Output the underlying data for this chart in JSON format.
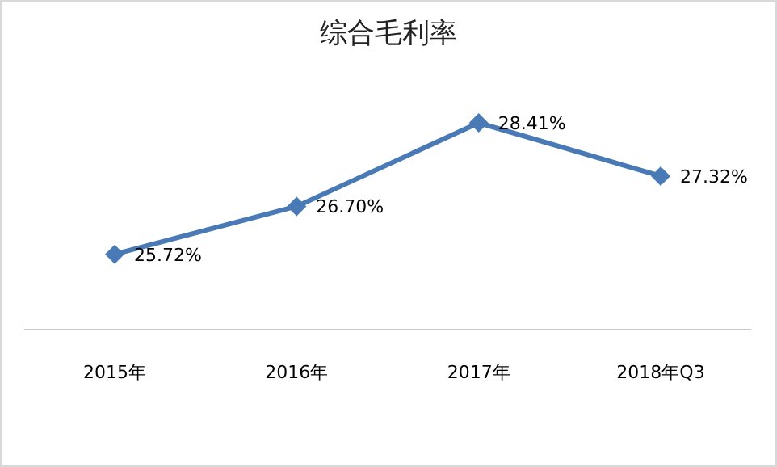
{
  "chart_data": {
    "type": "line",
    "title": "综合毛利率",
    "categories": [
      "2015年",
      "2016年",
      "2017年",
      "2018年Q3"
    ],
    "series": [
      {
        "color": "#4a7ab5",
        "values": [
          25.72,
          26.7,
          28.41,
          27.32
        ],
        "value_labels": [
          "25.72%",
          "26.70%",
          "28.41%",
          "27.32%"
        ]
      }
    ],
    "marker": "diamond",
    "line_style": "solid",
    "grid": false,
    "legend": false,
    "tick_labels": "x",
    "data_labels": true
  }
}
